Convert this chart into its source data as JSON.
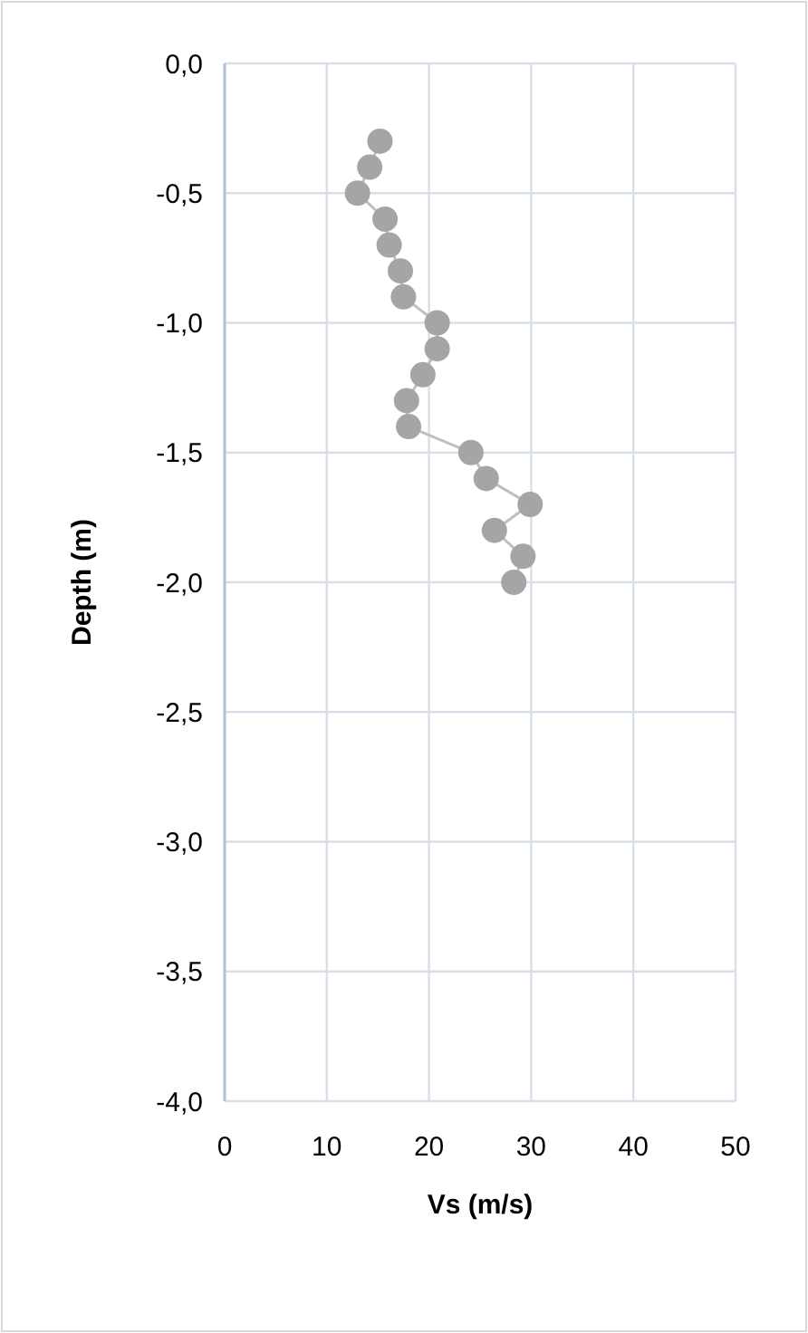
{
  "chart_data": {
    "type": "line",
    "xlabel": "Vs (m/s)",
    "ylabel": "Depth (m)",
    "xlim": [
      0,
      50
    ],
    "xticks": [
      0,
      10,
      20,
      30,
      40,
      50
    ],
    "ylim": [
      -4,
      0
    ],
    "yticks": [
      {
        "value": 0,
        "label": "0,0"
      },
      {
        "value": -0.5,
        "label": "-0,5"
      },
      {
        "value": -1,
        "label": "-1,0"
      },
      {
        "value": -1.5,
        "label": "-1,5"
      },
      {
        "value": -2,
        "label": "-2,0"
      },
      {
        "value": -2.5,
        "label": "-2,5"
      },
      {
        "value": -3,
        "label": "-3,0"
      },
      {
        "value": -3.5,
        "label": "-3,5"
      },
      {
        "value": -4,
        "label": "-4,0"
      }
    ],
    "grid": true,
    "marker": "circle",
    "line_style": "solid",
    "series": [
      {
        "color": "#a5a5a5",
        "x": [
          15.2,
          14.2,
          13.0,
          15.7,
          16.1,
          17.2,
          17.5,
          20.8,
          20.8,
          19.4,
          17.8,
          18.0,
          24.1,
          25.6,
          29.9,
          26.4,
          29.2,
          28.3
        ],
        "values": [
          -0.3,
          -0.4,
          -0.5,
          -0.6,
          -0.7,
          -0.8,
          -0.9,
          -1.0,
          -1.1,
          -1.2,
          -1.3,
          -1.4,
          -1.5,
          -1.6,
          -1.7,
          -1.8,
          -1.9,
          -2.0
        ]
      }
    ]
  }
}
